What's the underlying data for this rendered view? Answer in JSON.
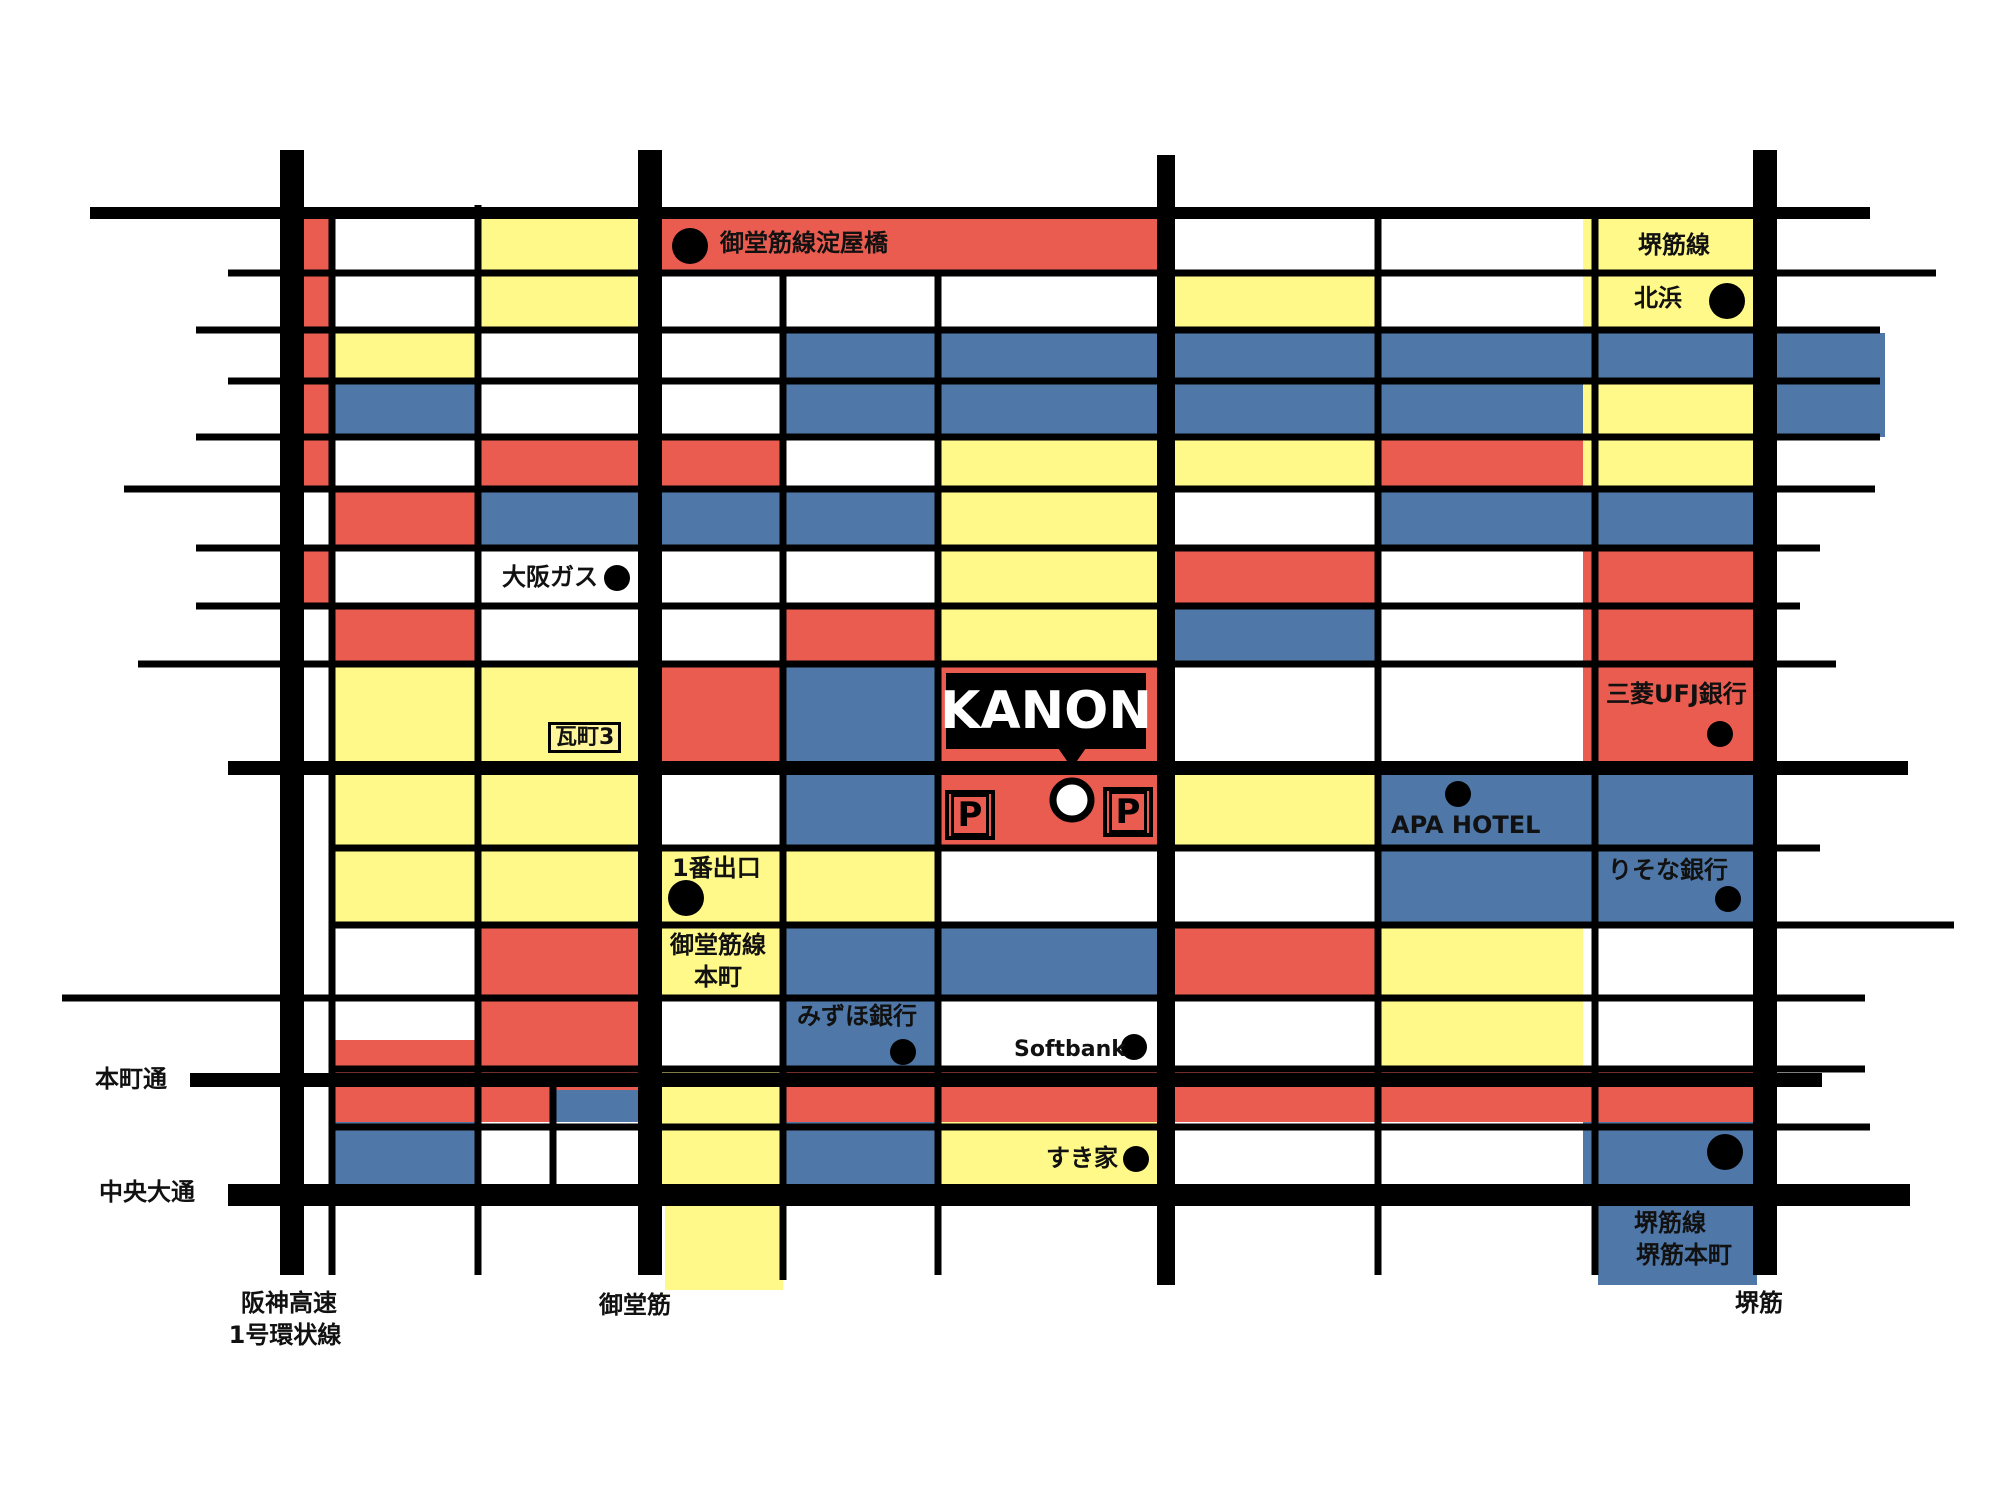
{
  "colors": {
    "red": "#e95c4f",
    "yellow": "#fff98a",
    "blue": "#4f78a8",
    "road": "#000000",
    "background": "#ffffff"
  },
  "venue": {
    "name": "KANON",
    "parking_label": "P"
  },
  "stations": {
    "yodoyabashi": "御堂筋線淀屋橋",
    "sakaisuji_line": "堺筋線",
    "kitahama": "北浜",
    "exit1": "1番出口",
    "honmachi_line": "御堂筋線",
    "honmachi": "本町",
    "sakaisuji_honmachi_line": "堺筋線",
    "sakaisuji_honmachi": "堺筋本町"
  },
  "landmarks": {
    "osaka_gas": "大阪ガス",
    "kawaramachi3": "瓦町3",
    "mufg": "三菱UFJ銀行",
    "apa_hotel": "APA HOTEL",
    "resona": "りそな銀行",
    "mizuho": "みずほ銀行",
    "softbank": "Softbank",
    "sukiya": "すき家"
  },
  "roads": {
    "honmachi_dori": "本町通",
    "chuo_odori": "中央大通",
    "hanshin_line1": "阪神高速",
    "hanshin_line2": "1号環状線",
    "midosuji": "御堂筋",
    "sakaisuji": "堺筋"
  }
}
